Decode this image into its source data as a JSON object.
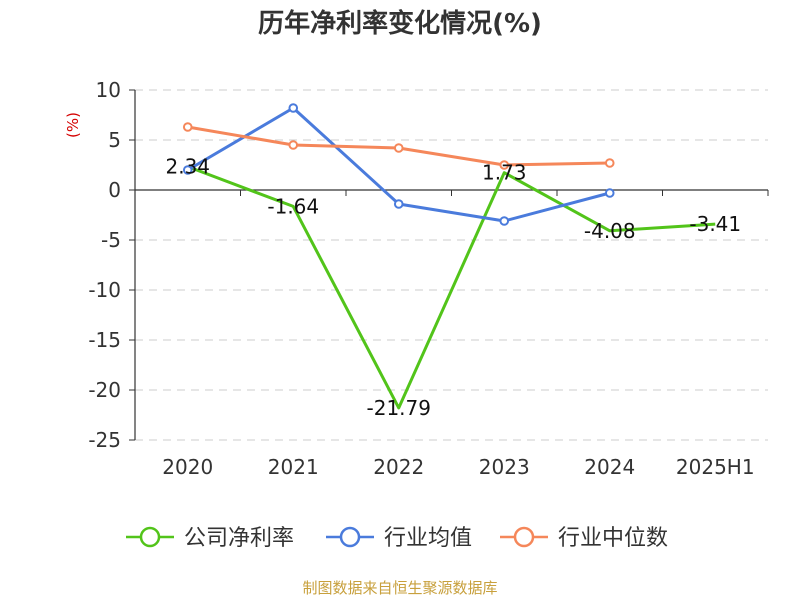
{
  "chart_data": {
    "type": "line",
    "title": "历年净利率变化情况(%)",
    "ylabel": "(%)",
    "ylabel_color": "#d40000",
    "categories": [
      "2020",
      "2021",
      "2022",
      "2023",
      "2024",
      "2025H1"
    ],
    "ylim": [
      -25,
      10
    ],
    "yticks": [
      10,
      5,
      0,
      -5,
      -10,
      -15,
      -20,
      -25
    ],
    "grid": true,
    "legend_position": "bottom",
    "series": [
      {
        "name": "公司净利率",
        "color": "#52c41a",
        "values": [
          2.34,
          -1.64,
          -21.79,
          1.73,
          -4.08,
          -3.41
        ],
        "labels": [
          "2.34",
          "-1.64",
          "-21.79",
          "1.73",
          "-4.08",
          "-3.41"
        ],
        "show_markers": false
      },
      {
        "name": "行业均值",
        "color": "#4a7bdc",
        "values": [
          2.0,
          8.2,
          -1.4,
          -3.1,
          -0.3,
          null
        ],
        "show_markers": true
      },
      {
        "name": "行业中位数",
        "color": "#f5875a",
        "values": [
          6.3,
          4.5,
          4.2,
          2.5,
          2.7,
          null
        ],
        "show_markers": true
      }
    ]
  },
  "source_text": "制图数据来自恒生聚源数据库",
  "source_color": "#c8a03c"
}
